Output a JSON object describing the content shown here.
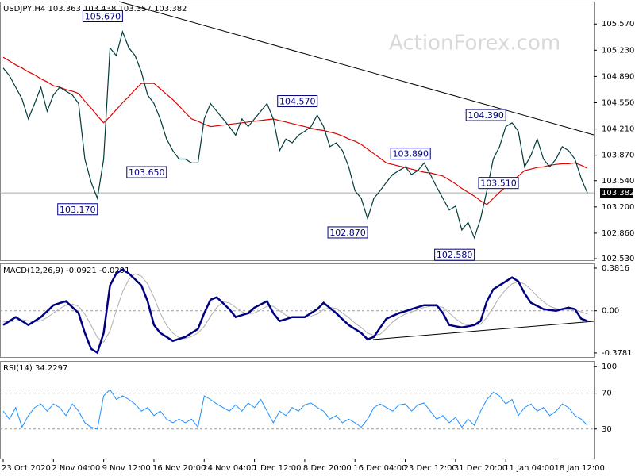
{
  "watermark": "ActionForex.com",
  "chart_data": [
    {
      "type": "line",
      "title": "USDJPY,H4  103.363 103.438 103.357 103.382",
      "ylim": [
        102.51,
        105.86
      ],
      "yticks": [
        {
          "value": 105.57,
          "label": "105.570"
        },
        {
          "value": 105.23,
          "label": "105.230"
        },
        {
          "value": 104.89,
          "label": "104.890"
        },
        {
          "value": 104.55,
          "label": "104.550"
        },
        {
          "value": 104.21,
          "label": "104.210"
        },
        {
          "value": 103.87,
          "label": "103.870"
        },
        {
          "value": 103.54,
          "label": "103.540"
        },
        {
          "value": 103.2,
          "label": "103.200"
        },
        {
          "value": 102.86,
          "label": "102.860"
        },
        {
          "value": 102.53,
          "label": "102.530"
        }
      ],
      "last": {
        "value": 103.382,
        "label": "103.382"
      },
      "series": [
        {
          "color": "#003a3a",
          "width": 1.2,
          "values": [
            105.0,
            104.9,
            104.75,
            104.6,
            104.34,
            104.54,
            104.75,
            104.44,
            104.65,
            104.75,
            104.7,
            104.65,
            104.54,
            103.82,
            103.52,
            103.31,
            103.82,
            105.26,
            105.16,
            105.47,
            105.26,
            105.16,
            104.95,
            104.65,
            104.54,
            104.34,
            104.08,
            103.93,
            103.82,
            103.82,
            103.77,
            103.77,
            104.34,
            104.54,
            104.44,
            104.34,
            104.24,
            104.13,
            104.34,
            104.24,
            104.34,
            104.44,
            104.54,
            104.34,
            103.93,
            104.08,
            104.03,
            104.13,
            104.18,
            104.24,
            104.39,
            104.24,
            103.98,
            104.03,
            103.93,
            103.72,
            103.41,
            103.31,
            103.05,
            103.31,
            103.41,
            103.52,
            103.62,
            103.67,
            103.72,
            103.62,
            103.67,
            103.77,
            103.62,
            103.46,
            103.31,
            103.16,
            103.21,
            102.9,
            103.0,
            102.8,
            103.05,
            103.41,
            103.82,
            103.98,
            104.24,
            104.29,
            104.18,
            103.72,
            103.87,
            104.08,
            103.82,
            103.72,
            103.82,
            103.98,
            103.93,
            103.82,
            103.57,
            103.38
          ]
        },
        {
          "color": "#e00000",
          "width": 1.2,
          "values": [
            105.14,
            105.09,
            105.04,
            105.0,
            104.95,
            104.91,
            104.86,
            104.82,
            104.77,
            104.75,
            104.72,
            104.7,
            104.67,
            104.57,
            104.48,
            104.38,
            104.29,
            104.37,
            104.46,
            104.55,
            104.63,
            104.72,
            104.8,
            104.8,
            104.8,
            104.73,
            104.66,
            104.59,
            104.51,
            104.42,
            104.34,
            104.31,
            104.27,
            104.24,
            104.25,
            104.26,
            104.27,
            104.28,
            104.29,
            104.3,
            104.31,
            104.32,
            104.33,
            104.34,
            104.32,
            104.3,
            104.28,
            104.26,
            104.24,
            104.22,
            104.2,
            104.19,
            104.17,
            104.15,
            104.12,
            104.08,
            104.05,
            104.01,
            103.95,
            103.89,
            103.83,
            103.77,
            103.75,
            103.73,
            103.71,
            103.69,
            103.67,
            103.65,
            103.64,
            103.62,
            103.6,
            103.55,
            103.5,
            103.44,
            103.39,
            103.34,
            103.28,
            103.23,
            103.31,
            103.39,
            103.46,
            103.53,
            103.6,
            103.67,
            103.69,
            103.71,
            103.72,
            103.74,
            103.75,
            103.76,
            103.76,
            103.77,
            103.74,
            103.7
          ]
        }
      ],
      "annotations": [
        {
          "x": 19,
          "value": 105.67,
          "label": "105.670"
        },
        {
          "x": 15,
          "value": 103.17,
          "label": "103.170"
        },
        {
          "x": 26,
          "value": 103.65,
          "label": "103.650"
        },
        {
          "x": 50,
          "value": 104.57,
          "label": "104.570"
        },
        {
          "x": 58,
          "value": 102.87,
          "label": "102.870"
        },
        {
          "x": 68,
          "value": 103.89,
          "label": "103.890"
        },
        {
          "x": 75,
          "value": 102.58,
          "label": "102.580"
        },
        {
          "x": 80,
          "value": 104.39,
          "label": "104.390"
        },
        {
          "x": 82,
          "value": 103.51,
          "label": "103.510"
        }
      ]
    },
    {
      "type": "line",
      "title": "MACD(12,26,9) -0.0921 -0.0291",
      "ylim": [
        -0.414,
        0.424
      ],
      "yticks": [
        0.3816,
        {
          "value": 0,
          "label": "0.00"
        },
        -0.3781
      ],
      "levels": [
        0
      ],
      "series": [
        {
          "color": "#000080",
          "width": 2.5,
          "values": [
            -0.128,
            -0.092,
            -0.057,
            -0.092,
            -0.128,
            -0.092,
            -0.057,
            -0.004,
            0.05,
            0.068,
            0.085,
            0.032,
            -0.021,
            -0.199,
            -0.341,
            -0.376,
            -0.199,
            0.227,
            0.334,
            0.369,
            0.334,
            0.281,
            0.227,
            0.085,
            -0.128,
            -0.199,
            -0.234,
            -0.27,
            -0.252,
            -0.234,
            -0.199,
            -0.163,
            -0.021,
            0.099,
            0.121,
            0.068,
            0.014,
            -0.057,
            -0.039,
            -0.021,
            0.028,
            0.057,
            0.085,
            -0.021,
            -0.092,
            -0.075,
            -0.057,
            -0.057,
            -0.057,
            -0.021,
            0.014,
            0.071,
            0.025,
            -0.021,
            -0.075,
            -0.128,
            -0.163,
            -0.199,
            -0.256,
            -0.234,
            -0.152,
            -0.071,
            -0.046,
            -0.021,
            -0.004,
            0.014,
            0.032,
            0.05,
            0.05,
            0.05,
            -0.021,
            -0.128,
            -0.139,
            -0.149,
            -0.139,
            -0.128,
            -0.092,
            0.085,
            0.192,
            0.227,
            0.263,
            0.298,
            0.263,
            0.156,
            0.071,
            0.043,
            0.014,
            0.007,
            0,
            0.014,
            0.028,
            0.014,
            -0.071,
            -0.092
          ]
        },
        {
          "color": "#b0b0b0",
          "width": 1,
          "values": [
            -0.1,
            -0.1,
            -0.09,
            -0.08,
            -0.09,
            -0.1,
            -0.09,
            -0.06,
            -0.02,
            0.02,
            0.05,
            0.06,
            0.04,
            -0.03,
            -0.13,
            -0.24,
            -0.28,
            -0.18,
            0,
            0.17,
            0.28,
            0.33,
            0.31,
            0.24,
            0.12,
            -0.02,
            -0.13,
            -0.2,
            -0.24,
            -0.25,
            -0.23,
            -0.2,
            -0.14,
            -0.05,
            0.03,
            0.08,
            0.07,
            0.03,
            -0.01,
            -0.03,
            -0.02,
            0.01,
            0.04,
            0.04,
            0,
            -0.04,
            -0.06,
            -0.06,
            -0.06,
            -0.05,
            -0.03,
            0.01,
            0.03,
            0.02,
            -0.02,
            -0.06,
            -0.11,
            -0.15,
            -0.2,
            -0.22,
            -0.21,
            -0.16,
            -0.1,
            -0.06,
            -0.03,
            -0.01,
            0.01,
            0.03,
            0.04,
            0.04,
            0.03,
            -0.02,
            -0.07,
            -0.11,
            -0.13,
            -0.13,
            -0.12,
            -0.06,
            0.03,
            0.12,
            0.19,
            0.24,
            0.26,
            0.24,
            0.19,
            0.13,
            0.08,
            0.04,
            0.02,
            0.01,
            0.01,
            0.01,
            -0.01,
            -0.03
          ]
        }
      ]
    },
    {
      "type": "line",
      "title": "RSI(14) 34.2297",
      "ylim": [
        -3,
        106
      ],
      "yticks": [
        100,
        70,
        30
      ],
      "levels": [
        70,
        30
      ],
      "categories": [
        "23 Oct 2020",
        null,
        null,
        null,
        null,
        null,
        null,
        null,
        "2 Nov 04:00",
        null,
        null,
        null,
        null,
        null,
        null,
        null,
        "9 Nov 12:00",
        null,
        null,
        null,
        null,
        null,
        null,
        null,
        "16 Nov 20:00",
        null,
        null,
        null,
        null,
        null,
        null,
        null,
        "24 Nov 04:00",
        null,
        null,
        null,
        null,
        null,
        null,
        null,
        "1 Dec 12:00",
        null,
        null,
        null,
        null,
        null,
        null,
        null,
        "8 Dec 20:00",
        null,
        null,
        null,
        null,
        null,
        null,
        null,
        "16 Dec 04:00",
        null,
        null,
        null,
        null,
        null,
        null,
        null,
        "23 Dec 12:00",
        null,
        null,
        null,
        null,
        null,
        null,
        null,
        "31 Dec 20:00",
        null,
        null,
        null,
        null,
        null,
        null,
        null,
        "11 Jan 04:00",
        null,
        null,
        null,
        null,
        null,
        null,
        null,
        "18 Jan 12:00",
        null,
        null,
        null,
        null,
        null
      ],
      "series": [
        {
          "color": "#1e90ff",
          "width": 1,
          "values": [
            50,
            41,
            54,
            32,
            45,
            54,
            58,
            50,
            58,
            54,
            45,
            58,
            50,
            37,
            32,
            30,
            67,
            74,
            63,
            67,
            63,
            58,
            50,
            54,
            45,
            50,
            41,
            37,
            41,
            37,
            41,
            32,
            67,
            63,
            58,
            54,
            50,
            57,
            50,
            59,
            54,
            63,
            50,
            37,
            50,
            45,
            54,
            50,
            57,
            59,
            54,
            50,
            41,
            45,
            37,
            41,
            37,
            32,
            41,
            54,
            58,
            54,
            50,
            57,
            58,
            50,
            57,
            59,
            50,
            41,
            45,
            37,
            43,
            32,
            41,
            34,
            50,
            63,
            71,
            67,
            58,
            63,
            45,
            54,
            58,
            50,
            54,
            45,
            50,
            58,
            54,
            45,
            41,
            34
          ]
        }
      ]
    }
  ]
}
